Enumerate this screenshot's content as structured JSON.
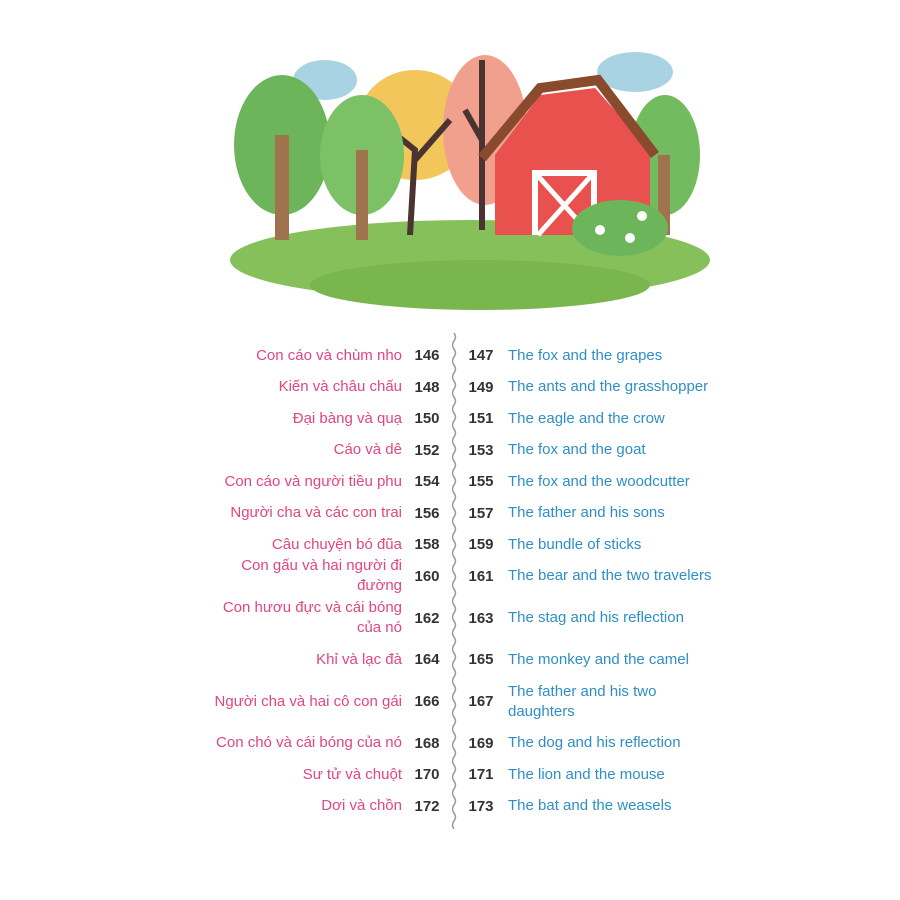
{
  "colors": {
    "vietnamese_title": "#e2457f",
    "english_title": "#2e8fc6",
    "page_number": "#333333"
  },
  "illustration": {
    "subject": "barn-with-trees-icon"
  },
  "toc": [
    {
      "vi": "Con cáo và chùm nho",
      "vi_page": "146",
      "en_page": "147",
      "en": "The fox and the grapes"
    },
    {
      "vi": "Kiến và châu chấu",
      "vi_page": "148",
      "en_page": "149",
      "en": "The ants and the grasshopper"
    },
    {
      "vi": "Đại bàng và quạ",
      "vi_page": "150",
      "en_page": "151",
      "en": "The eagle and the crow"
    },
    {
      "vi": "Cáo và dê",
      "vi_page": "152",
      "en_page": "153",
      "en": "The fox and the goat"
    },
    {
      "vi": "Con cáo và người tiều phu",
      "vi_page": "154",
      "en_page": "155",
      "en": "The fox and the woodcutter"
    },
    {
      "vi": "Người cha và các con trai",
      "vi_page": "156",
      "en_page": "157",
      "en": "The father and his sons"
    },
    {
      "vi": "Câu chuyện bó đũa",
      "vi_page": "158",
      "en_page": "159",
      "en": "The bundle of sticks"
    },
    {
      "vi": "Con gấu và hai người đi đường",
      "vi_page": "160",
      "en_page": "161",
      "en": "The bear and the two travelers"
    },
    {
      "vi": "Con hươu đực và cái bóng của nó",
      "vi_page": "162",
      "en_page": "163",
      "en": "The stag and his reflection"
    },
    {
      "vi": "Khỉ và lạc đà",
      "vi_page": "164",
      "en_page": "165",
      "en": "The monkey and the camel"
    },
    {
      "vi": "Người cha và hai cô con gái",
      "vi_page": "166",
      "en_page": "167",
      "en": "The father and his two daughters"
    },
    {
      "vi": "Con chó và cái bóng của nó",
      "vi_page": "168",
      "en_page": "169",
      "en": "The dog and his reflection"
    },
    {
      "vi": "Sư tử và chuột",
      "vi_page": "170",
      "en_page": "171",
      "en": "The lion and the mouse"
    },
    {
      "vi": "Dơi và chồn",
      "vi_page": "172",
      "en_page": "173",
      "en": "The bat and the weasels"
    }
  ]
}
